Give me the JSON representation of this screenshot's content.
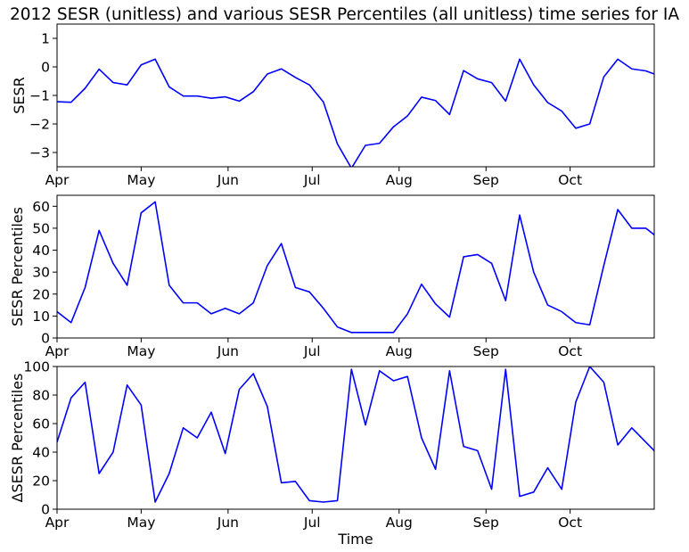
{
  "title": "2012 SESR (unitless) and various SESR Percentiles (all unitless) time series for IA",
  "xlabel": "Time",
  "line_color": "#0000ff",
  "chart_data": [
    {
      "type": "line",
      "ylabel": "SESR",
      "ylim": [
        -3.5,
        1.5
      ],
      "yticks": [
        -3,
        -2,
        -1,
        0,
        1
      ],
      "xticks": [
        "Apr",
        "May",
        "Jun",
        "Jul",
        "Aug",
        "Sep",
        "Oct"
      ],
      "xlim": [
        "2012-04-01",
        "2012-10-31"
      ],
      "x": [
        "2012-04-01",
        "2012-04-06",
        "2012-04-11",
        "2012-04-16",
        "2012-04-21",
        "2012-04-26",
        "2012-05-01",
        "2012-05-06",
        "2012-05-11",
        "2012-05-16",
        "2012-05-21",
        "2012-05-26",
        "2012-05-31",
        "2012-06-05",
        "2012-06-10",
        "2012-06-15",
        "2012-06-20",
        "2012-06-25",
        "2012-06-30",
        "2012-07-05",
        "2012-07-10",
        "2012-07-15",
        "2012-07-20",
        "2012-07-25",
        "2012-07-30",
        "2012-08-04",
        "2012-08-09",
        "2012-08-14",
        "2012-08-19",
        "2012-08-24",
        "2012-08-29",
        "2012-09-03",
        "2012-09-08",
        "2012-09-13",
        "2012-09-18",
        "2012-09-23",
        "2012-09-28",
        "2012-10-03",
        "2012-10-08",
        "2012-10-13",
        "2012-10-18",
        "2012-10-23",
        "2012-10-28",
        "2012-10-31"
      ],
      "series": [
        {
          "values": [
            -1.22,
            -1.24,
            -0.75,
            -0.08,
            -0.55,
            -0.63,
            0.07,
            0.27,
            -0.7,
            -1.02,
            -1.02,
            -1.1,
            -1.05,
            -1.2,
            -0.87,
            -0.25,
            -0.07,
            -0.37,
            -0.63,
            -1.23,
            -2.7,
            -3.55,
            -2.75,
            -2.68,
            -2.1,
            -1.72,
            -1.06,
            -1.18,
            -1.67,
            -0.13,
            -0.42,
            -0.55,
            -1.2,
            0.27,
            -0.63,
            -1.25,
            -1.55,
            -2.15,
            -2.0,
            -0.35,
            0.27,
            -0.07,
            -0.14,
            -0.25
          ]
        }
      ]
    },
    {
      "type": "line",
      "ylabel": "SESR Percentiles",
      "ylim": [
        0,
        65
      ],
      "yticks": [
        0,
        10,
        20,
        30,
        40,
        50,
        60
      ],
      "xticks": [
        "Apr",
        "May",
        "Jun",
        "Jul",
        "Aug",
        "Sep",
        "Oct"
      ],
      "xlim": [
        "2012-04-01",
        "2012-10-31"
      ],
      "x": [
        "2012-04-01",
        "2012-04-06",
        "2012-04-11",
        "2012-04-16",
        "2012-04-21",
        "2012-04-26",
        "2012-05-01",
        "2012-05-06",
        "2012-05-11",
        "2012-05-16",
        "2012-05-21",
        "2012-05-26",
        "2012-05-31",
        "2012-06-05",
        "2012-06-10",
        "2012-06-15",
        "2012-06-20",
        "2012-06-25",
        "2012-06-30",
        "2012-07-05",
        "2012-07-10",
        "2012-07-15",
        "2012-07-20",
        "2012-07-25",
        "2012-07-30",
        "2012-08-04",
        "2012-08-09",
        "2012-08-14",
        "2012-08-19",
        "2012-08-24",
        "2012-08-29",
        "2012-09-03",
        "2012-09-08",
        "2012-09-13",
        "2012-09-18",
        "2012-09-23",
        "2012-09-28",
        "2012-10-03",
        "2012-10-08",
        "2012-10-13",
        "2012-10-18",
        "2012-10-23",
        "2012-10-28",
        "2012-10-31"
      ],
      "series": [
        {
          "values": [
            12,
            7,
            23,
            49,
            34,
            24,
            57,
            62,
            24,
            16,
            16,
            11,
            13.5,
            11,
            16,
            33,
            43,
            23,
            21,
            13.5,
            5,
            2.5,
            2.5,
            2.5,
            2.5,
            11,
            24.5,
            15.5,
            9.5,
            37,
            38,
            34,
            17,
            56,
            30,
            15,
            12,
            7,
            6,
            33,
            58.5,
            50,
            50,
            47
          ]
        }
      ]
    },
    {
      "type": "line",
      "ylabel": "ΔSESR Percentiles",
      "ylim": [
        0,
        100
      ],
      "yticks": [
        0,
        20,
        40,
        60,
        80,
        100
      ],
      "xticks": [
        "Apr",
        "May",
        "Jun",
        "Jul",
        "Aug",
        "Sep",
        "Oct"
      ],
      "xlim": [
        "2012-04-01",
        "2012-10-31"
      ],
      "x": [
        "2012-04-01",
        "2012-04-06",
        "2012-04-11",
        "2012-04-16",
        "2012-04-21",
        "2012-04-26",
        "2012-05-01",
        "2012-05-06",
        "2012-05-11",
        "2012-05-16",
        "2012-05-21",
        "2012-05-26",
        "2012-05-31",
        "2012-06-05",
        "2012-06-10",
        "2012-06-15",
        "2012-06-20",
        "2012-06-25",
        "2012-06-30",
        "2012-07-05",
        "2012-07-10",
        "2012-07-15",
        "2012-07-20",
        "2012-07-25",
        "2012-07-30",
        "2012-08-04",
        "2012-08-09",
        "2012-08-14",
        "2012-08-19",
        "2012-08-24",
        "2012-08-29",
        "2012-09-03",
        "2012-09-08",
        "2012-09-13",
        "2012-09-18",
        "2012-09-23",
        "2012-09-28",
        "2012-10-03",
        "2012-10-08",
        "2012-10-13",
        "2012-10-18",
        "2012-10-23",
        "2012-10-28",
        "2012-10-31"
      ],
      "series": [
        {
          "values": [
            47,
            78,
            89,
            25,
            40,
            87,
            73,
            5,
            25,
            57,
            50,
            68,
            39,
            84,
            95,
            72,
            18.5,
            19.5,
            6,
            5,
            6,
            98,
            59,
            97,
            90,
            93,
            50,
            28,
            97,
            44,
            41,
            14,
            98,
            9,
            12,
            29,
            14,
            75,
            100,
            89,
            45,
            57,
            47,
            41
          ]
        }
      ]
    }
  ]
}
